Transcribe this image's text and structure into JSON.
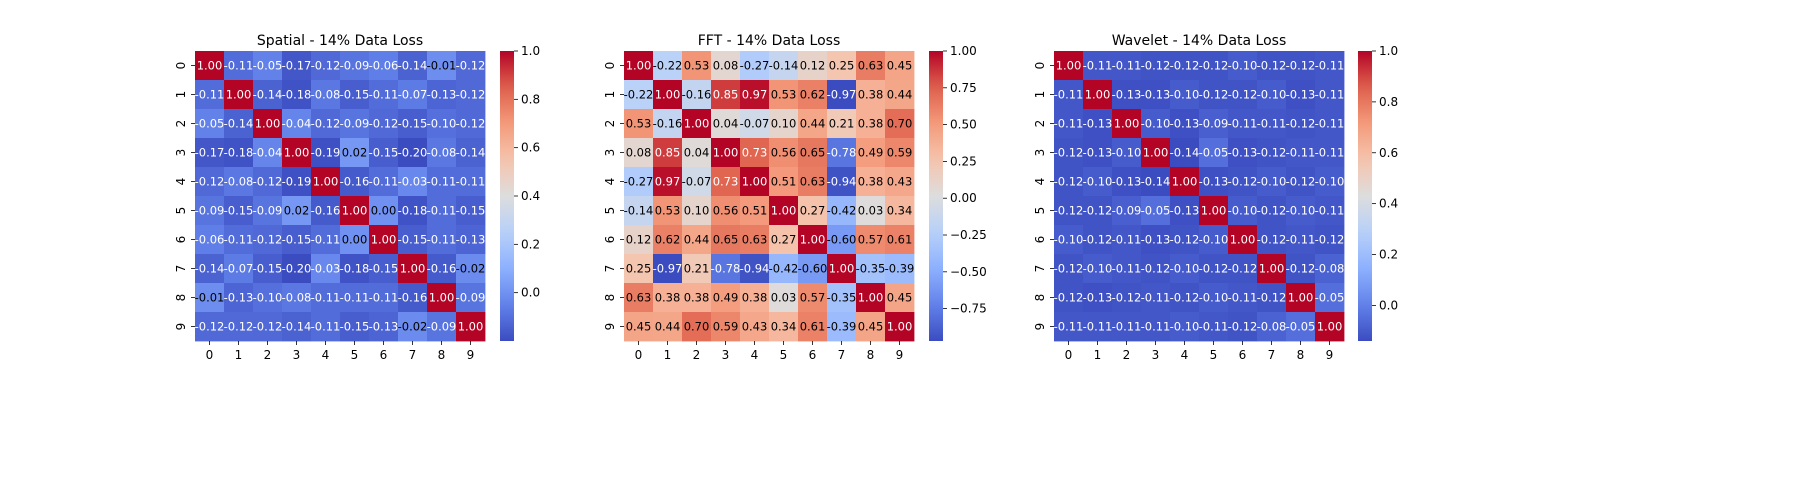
{
  "chart_data": [
    {
      "type": "heatmap",
      "title": "Spatial - 14% Data Loss",
      "x_ticks": [
        "0",
        "1",
        "2",
        "3",
        "4",
        "5",
        "6",
        "7",
        "8",
        "9"
      ],
      "y_ticks": [
        "0",
        "1",
        "2",
        "3",
        "4",
        "5",
        "6",
        "7",
        "8",
        "9"
      ],
      "colormap": "coolwarm",
      "vmin": -0.2,
      "vmax": 1.0,
      "colorbar_ticks": [
        1.0,
        0.8,
        0.6,
        0.4,
        0.2,
        0.0
      ],
      "colorbar_labels": [
        "1.0",
        "0.8",
        "0.6",
        "0.4",
        "0.2",
        "0.0"
      ],
      "values": [
        [
          1.0,
          -0.11,
          -0.05,
          -0.17,
          -0.12,
          -0.09,
          -0.06,
          -0.14,
          -0.01,
          -0.12
        ],
        [
          -0.11,
          1.0,
          -0.14,
          -0.18,
          -0.08,
          -0.15,
          -0.11,
          -0.07,
          -0.13,
          -0.12
        ],
        [
          -0.05,
          -0.14,
          1.0,
          -0.04,
          -0.12,
          -0.09,
          -0.12,
          -0.15,
          -0.1,
          -0.12
        ],
        [
          -0.17,
          -0.18,
          -0.04,
          1.0,
          -0.19,
          0.02,
          -0.15,
          -0.2,
          -0.08,
          -0.14
        ],
        [
          -0.12,
          -0.08,
          -0.12,
          -0.19,
          1.0,
          -0.16,
          -0.11,
          -0.03,
          -0.11,
          -0.11
        ],
        [
          -0.09,
          -0.15,
          -0.09,
          0.02,
          -0.16,
          1.0,
          0.0,
          -0.18,
          -0.11,
          -0.15
        ],
        [
          -0.06,
          -0.11,
          -0.12,
          -0.15,
          -0.11,
          0.0,
          1.0,
          -0.15,
          -0.11,
          -0.13
        ],
        [
          -0.14,
          -0.07,
          -0.15,
          -0.2,
          -0.03,
          -0.18,
          -0.15,
          1.0,
          -0.16,
          -0.02
        ],
        [
          -0.01,
          -0.13,
          -0.1,
          -0.08,
          -0.11,
          -0.11,
          -0.11,
          -0.16,
          1.0,
          -0.09
        ],
        [
          -0.12,
          -0.12,
          -0.12,
          -0.14,
          -0.11,
          -0.15,
          -0.13,
          -0.02,
          -0.09,
          1.0
        ]
      ]
    },
    {
      "type": "heatmap",
      "title": "FFT - 14% Data Loss",
      "x_ticks": [
        "0",
        "1",
        "2",
        "3",
        "4",
        "5",
        "6",
        "7",
        "8",
        "9"
      ],
      "y_ticks": [
        "0",
        "1",
        "2",
        "3",
        "4",
        "5",
        "6",
        "7",
        "8",
        "9"
      ],
      "colormap": "coolwarm",
      "vmin": -0.97,
      "vmax": 1.0,
      "colorbar_ticks": [
        1.0,
        0.75,
        0.5,
        0.25,
        0.0,
        -0.25,
        -0.5,
        -0.75
      ],
      "colorbar_labels": [
        "1.00",
        "0.75",
        "0.50",
        "0.25",
        "0.00",
        "−0.25",
        "−0.50",
        "−0.75"
      ],
      "values": [
        [
          1.0,
          -0.22,
          0.53,
          0.08,
          -0.27,
          -0.14,
          0.12,
          0.25,
          0.63,
          0.45
        ],
        [
          -0.22,
          1.0,
          -0.16,
          0.85,
          0.97,
          0.53,
          0.62,
          -0.97,
          0.38,
          0.44
        ],
        [
          0.53,
          -0.16,
          1.0,
          0.04,
          -0.07,
          0.1,
          0.44,
          0.21,
          0.38,
          0.7
        ],
        [
          0.08,
          0.85,
          0.04,
          1.0,
          0.73,
          0.56,
          0.65,
          -0.78,
          0.49,
          0.59
        ],
        [
          -0.27,
          0.97,
          -0.07,
          0.73,
          1.0,
          0.51,
          0.63,
          -0.94,
          0.38,
          0.43
        ],
        [
          -0.14,
          0.53,
          0.1,
          0.56,
          0.51,
          1.0,
          0.27,
          -0.42,
          0.03,
          0.34
        ],
        [
          0.12,
          0.62,
          0.44,
          0.65,
          0.63,
          0.27,
          1.0,
          -0.6,
          0.57,
          0.61
        ],
        [
          0.25,
          -0.97,
          0.21,
          -0.78,
          -0.94,
          -0.42,
          -0.6,
          1.0,
          -0.35,
          -0.39
        ],
        [
          0.63,
          0.38,
          0.38,
          0.49,
          0.38,
          0.03,
          0.57,
          -0.35,
          1.0,
          0.45
        ],
        [
          0.45,
          0.44,
          0.7,
          0.59,
          0.43,
          0.34,
          0.61,
          -0.39,
          0.45,
          1.0
        ]
      ]
    },
    {
      "type": "heatmap",
      "title": "Wavelet - 14% Data Loss",
      "x_ticks": [
        "0",
        "1",
        "2",
        "3",
        "4",
        "5",
        "6",
        "7",
        "8",
        "9"
      ],
      "y_ticks": [
        "0",
        "1",
        "2",
        "3",
        "4",
        "5",
        "6",
        "7",
        "8",
        "9"
      ],
      "colormap": "coolwarm",
      "vmin": -0.14,
      "vmax": 1.0,
      "colorbar_ticks": [
        1.0,
        0.8,
        0.6,
        0.4,
        0.2,
        0.0
      ],
      "colorbar_labels": [
        "1.0",
        "0.8",
        "0.6",
        "0.4",
        "0.2",
        "0.0"
      ],
      "values": [
        [
          1.0,
          -0.11,
          -0.11,
          -0.12,
          -0.12,
          -0.12,
          -0.1,
          -0.12,
          -0.12,
          -0.11
        ],
        [
          -0.11,
          1.0,
          -0.13,
          -0.13,
          -0.1,
          -0.12,
          -0.12,
          -0.1,
          -0.13,
          -0.11
        ],
        [
          -0.11,
          -0.13,
          1.0,
          -0.1,
          -0.13,
          -0.09,
          -0.11,
          -0.11,
          -0.12,
          -0.11
        ],
        [
          -0.12,
          -0.13,
          -0.1,
          1.0,
          -0.14,
          -0.05,
          -0.13,
          -0.12,
          -0.11,
          -0.11
        ],
        [
          -0.12,
          -0.1,
          -0.13,
          -0.14,
          1.0,
          -0.13,
          -0.12,
          -0.1,
          -0.12,
          -0.1
        ],
        [
          -0.12,
          -0.12,
          -0.09,
          -0.05,
          -0.13,
          1.0,
          -0.1,
          -0.12,
          -0.1,
          -0.11
        ],
        [
          -0.1,
          -0.12,
          -0.11,
          -0.13,
          -0.12,
          -0.1,
          1.0,
          -0.12,
          -0.11,
          -0.12
        ],
        [
          -0.12,
          -0.1,
          -0.11,
          -0.12,
          -0.1,
          -0.12,
          -0.12,
          1.0,
          -0.12,
          -0.08
        ],
        [
          -0.12,
          -0.13,
          -0.12,
          -0.11,
          -0.12,
          -0.1,
          -0.11,
          -0.12,
          1.0,
          -0.05
        ],
        [
          -0.11,
          -0.11,
          -0.11,
          -0.11,
          -0.1,
          -0.11,
          -0.12,
          -0.08,
          -0.05,
          1.0
        ]
      ]
    }
  ]
}
